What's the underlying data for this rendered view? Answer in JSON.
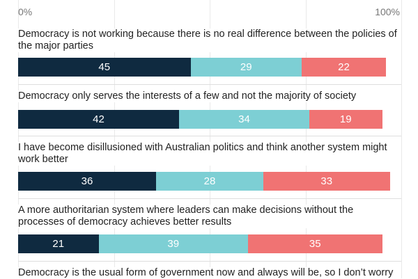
{
  "chart_data": {
    "type": "bar",
    "orientation": "horizontal",
    "stacked": true,
    "xlim": [
      0,
      100
    ],
    "x_tick_labels": [
      "0%",
      "100%"
    ],
    "grid": true,
    "series_colors": [
      "#0f2a40",
      "#7dcfd4",
      "#f07373"
    ],
    "rows": [
      {
        "label": "Democracy is not working because there is no real difference between the policies of the major parties",
        "values": [
          45,
          29,
          22
        ]
      },
      {
        "label": "Democracy only serves the interests of a few and not the majority of society",
        "values": [
          42,
          34,
          19
        ]
      },
      {
        "label": "I have become disillusioned with Australian politics and think another system might work better",
        "values": [
          36,
          28,
          33
        ]
      },
      {
        "label": "A more authoritarian system where leaders can make decisions without the processes of democracy achieves better results",
        "values": [
          21,
          39,
          35
        ]
      },
      {
        "label": "Democracy is the usual form of government now and always will be, so I don’t worry",
        "values": []
      }
    ]
  }
}
